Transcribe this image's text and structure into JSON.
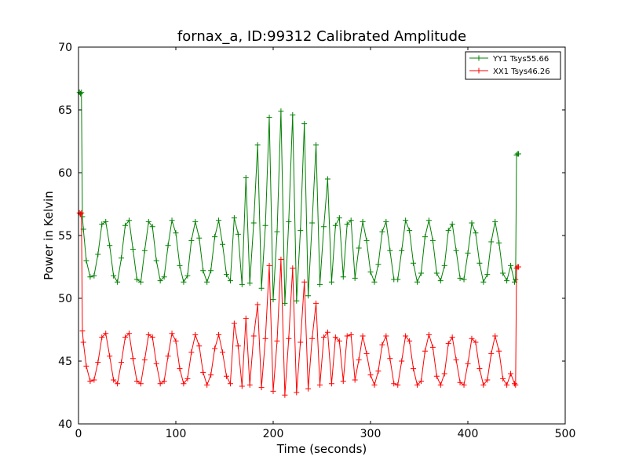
{
  "chart_data": {
    "type": "line",
    "title": "fornax_a, ID:99312 Calibrated Amplitude",
    "xlabel": "Time (seconds)",
    "ylabel": "Power in Kelvin",
    "xlim": [
      0,
      500
    ],
    "ylim": [
      40,
      70
    ],
    "xticks": [
      "0",
      "100",
      "200",
      "300",
      "400",
      "500"
    ],
    "yticks": [
      "40",
      "45",
      "50",
      "55",
      "60",
      "65",
      "70"
    ],
    "grid": false,
    "legend_position": "top-right",
    "marker": "+",
    "series": [
      {
        "name": "YY1 Tsys55.66",
        "color": "#008000",
        "x": [
          1,
          2,
          3,
          4,
          5,
          8,
          12,
          16,
          20,
          24,
          28,
          32,
          36,
          40,
          44,
          48,
          52,
          56,
          60,
          64,
          68,
          72,
          76,
          80,
          84,
          88,
          92,
          96,
          100,
          104,
          108,
          112,
          116,
          120,
          124,
          128,
          132,
          136,
          140,
          144,
          148,
          152,
          156,
          160,
          164,
          168,
          172,
          176,
          180,
          184,
          188,
          192,
          196,
          200,
          204,
          208,
          212,
          216,
          220,
          224,
          228,
          232,
          236,
          240,
          244,
          248,
          252,
          256,
          260,
          264,
          268,
          272,
          276,
          280,
          284,
          288,
          292,
          296,
          300,
          304,
          308,
          312,
          316,
          320,
          324,
          328,
          332,
          336,
          340,
          344,
          348,
          352,
          356,
          360,
          364,
          368,
          372,
          376,
          380,
          384,
          388,
          392,
          396,
          400,
          404,
          408,
          412,
          416,
          420,
          424,
          428,
          432,
          436,
          440,
          444,
          448,
          449,
          450,
          451,
          452
        ],
        "y": [
          66.4,
          66.3,
          66.4,
          56.5,
          55.5,
          53.0,
          51.7,
          51.8,
          53.5,
          55.9,
          56.1,
          54.2,
          51.8,
          51.3,
          53.2,
          55.8,
          56.2,
          53.9,
          51.5,
          51.3,
          53.8,
          56.1,
          55.7,
          53.0,
          51.4,
          51.7,
          54.2,
          56.2,
          55.2,
          52.6,
          51.3,
          51.8,
          54.6,
          56.1,
          54.8,
          52.2,
          51.3,
          52.2,
          54.9,
          56.2,
          54.3,
          51.9,
          51.4,
          56.4,
          55.1,
          51.1,
          59.6,
          51.2,
          56.0,
          62.2,
          50.8,
          55.8,
          64.4,
          49.9,
          55.3,
          64.9,
          49.6,
          56.1,
          64.6,
          49.8,
          55.4,
          63.9,
          50.2,
          56.0,
          62.2,
          51.1,
          55.7,
          59.5,
          51.3,
          55.8,
          56.4,
          51.7,
          55.9,
          56.2,
          51.6,
          54.0,
          56.1,
          54.6,
          52.1,
          51.3,
          52.7,
          55.3,
          56.1,
          53.8,
          51.5,
          51.5,
          53.8,
          56.2,
          55.4,
          52.8,
          51.3,
          52.0,
          54.9,
          56.2,
          54.6,
          52.0,
          51.4,
          52.6,
          55.4,
          55.9,
          53.8,
          51.6,
          51.5,
          53.6,
          56.0,
          55.2,
          52.8,
          51.3,
          51.9,
          54.5,
          56.1,
          54.4,
          52.0,
          51.4,
          52.6,
          51.3,
          51.5,
          61.4,
          61.5,
          61.5
        ]
      },
      {
        "name": "XX1 Tsys46.26",
        "color": "#ff0000",
        "x": [
          1,
          2,
          3,
          4,
          5,
          8,
          12,
          16,
          20,
          24,
          28,
          32,
          36,
          40,
          44,
          48,
          52,
          56,
          60,
          64,
          68,
          72,
          76,
          80,
          84,
          88,
          92,
          96,
          100,
          104,
          108,
          112,
          116,
          120,
          124,
          128,
          132,
          136,
          140,
          144,
          148,
          152,
          156,
          160,
          164,
          168,
          172,
          176,
          180,
          184,
          188,
          192,
          196,
          200,
          204,
          208,
          212,
          216,
          220,
          224,
          228,
          232,
          236,
          240,
          244,
          248,
          252,
          256,
          260,
          264,
          268,
          272,
          276,
          280,
          284,
          288,
          292,
          296,
          300,
          304,
          308,
          312,
          316,
          320,
          324,
          328,
          332,
          336,
          340,
          344,
          348,
          352,
          356,
          360,
          364,
          368,
          372,
          376,
          380,
          384,
          388,
          392,
          396,
          400,
          404,
          408,
          412,
          416,
          420,
          424,
          428,
          432,
          436,
          440,
          444,
          448,
          449,
          450,
          451,
          452
        ],
        "y": [
          56.8,
          56.7,
          56.8,
          47.4,
          46.5,
          44.6,
          43.4,
          43.5,
          44.9,
          46.9,
          47.2,
          45.4,
          43.5,
          43.2,
          44.9,
          46.9,
          47.2,
          45.2,
          43.4,
          43.2,
          45.1,
          47.1,
          46.9,
          44.8,
          43.2,
          43.4,
          45.4,
          47.2,
          46.6,
          44.4,
          43.2,
          43.6,
          45.7,
          47.1,
          46.2,
          44.1,
          43.1,
          43.9,
          46.0,
          47.1,
          45.7,
          43.8,
          43.2,
          48.0,
          46.2,
          43.0,
          48.4,
          43.1,
          47.0,
          49.5,
          42.9,
          46.8,
          52.6,
          42.6,
          46.6,
          53.1,
          42.3,
          46.8,
          52.4,
          42.5,
          46.5,
          51.3,
          42.8,
          46.8,
          49.6,
          43.1,
          46.9,
          47.3,
          43.2,
          46.9,
          46.6,
          43.4,
          47.0,
          47.1,
          43.5,
          45.1,
          47.0,
          45.6,
          43.9,
          43.1,
          44.2,
          46.3,
          47.0,
          45.2,
          43.2,
          43.1,
          45.0,
          47.0,
          46.6,
          44.4,
          43.1,
          43.4,
          45.8,
          47.1,
          46.1,
          43.8,
          43.1,
          44.0,
          46.4,
          46.9,
          45.1,
          43.3,
          43.1,
          44.8,
          46.8,
          46.5,
          44.4,
          43.1,
          43.5,
          45.6,
          47.0,
          45.8,
          43.6,
          43.1,
          44.0,
          43.2,
          43.1,
          52.4,
          52.5,
          52.5
        ]
      }
    ]
  }
}
